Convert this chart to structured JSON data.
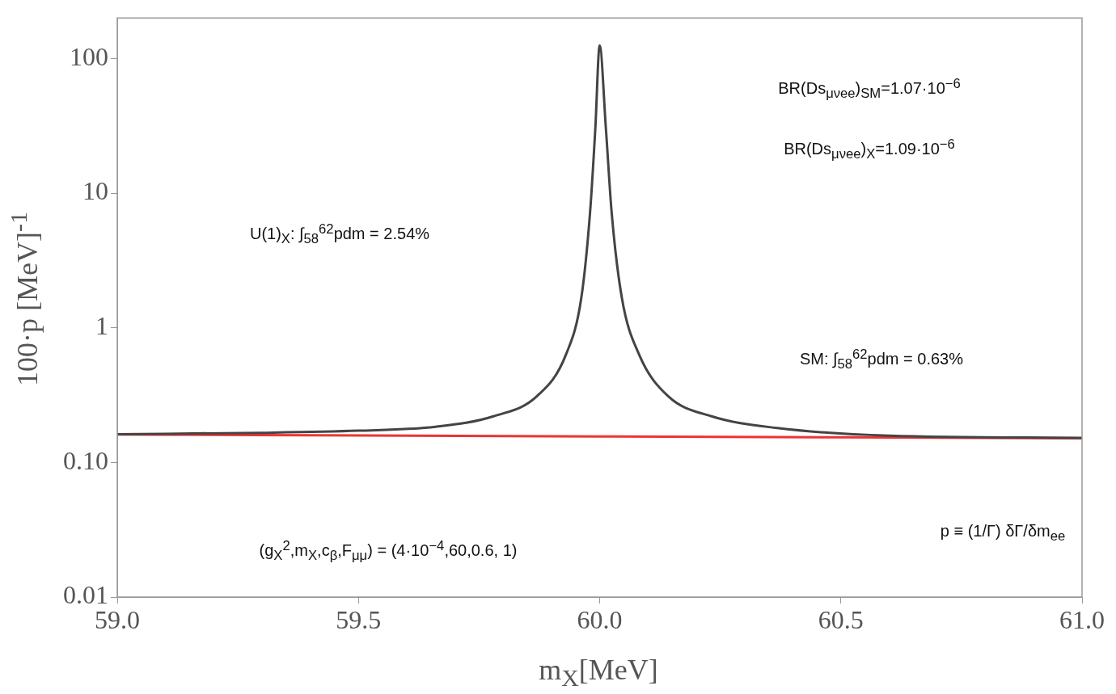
{
  "chart_data": {
    "type": "line",
    "xlabel": "m$_{X}$[MeV]",
    "ylabel": "100·p [MeV]$^{-1}$",
    "log": "y",
    "grid": false,
    "legend": false,
    "marker": "none",
    "line_style": "solid",
    "xlim": [
      59.0,
      61.0
    ],
    "xticks": [
      {
        "value": 59,
        "label": "59.0"
      },
      {
        "value": 59.5,
        "label": "59.5"
      },
      {
        "value": 60,
        "label": "60.0"
      },
      {
        "value": 60.5,
        "label": "60.5"
      },
      {
        "value": 61,
        "label": "61.0"
      }
    ],
    "ylim": [
      0.01,
      200
    ],
    "yticks": [
      0.01,
      {
        "value": 0.1,
        "label": "0.10"
      },
      1,
      10,
      100
    ],
    "series": [
      {
        "color": "#444444",
        "x": [
          59.0,
          59.3,
          59.5,
          59.66,
          59.78,
          59.87,
          59.93,
          59.962,
          59.98,
          59.991,
          60.0,
          60.013,
          60.025,
          60.046,
          60.082,
          60.142,
          60.232,
          60.368,
          60.6,
          61.0
        ],
        "values": [
          0.162,
          0.166,
          0.172,
          0.184,
          0.22,
          0.31,
          0.63,
          1.67,
          7.1,
          30,
          125,
          30,
          7.1,
          1.67,
          0.63,
          0.31,
          0.22,
          0.18,
          0.158,
          0.152
        ]
      },
      {
        "color": "#ee3333",
        "x": [
          59.0,
          60.0,
          61.0
        ],
        "values": [
          0.161,
          0.156,
          0.151
        ]
      }
    ],
    "annotations": [
      "BR(Ds$_{μνee}$)$_{SM}$=1.07·10$^{−6}$",
      "BR(Ds$_{μνee}$)$_{X}$=1.09·10$^{−6}$",
      "U(1)$_{X}$: ∫$_{58}$$^{62}$pdm = 2.54%",
      "SM: ∫$_{58}$$^{62}$pdm = 0.63%",
      "(g$_{X}$$^{2}$,m$_{X}$,c$_{β}$,F$_{μμ}$) = (4·10$^{−4}$,60,0.6, 1)",
      "p ≡ (1/Γ) δΓ/δm$_{ee}$"
    ]
  }
}
